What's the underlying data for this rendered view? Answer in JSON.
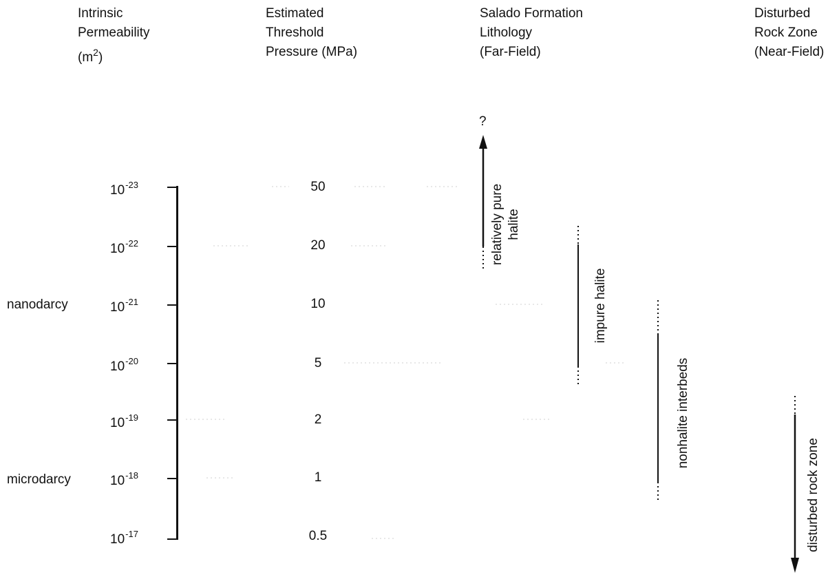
{
  "headers": {
    "permeability": [
      "Intrinsic",
      "Permeability",
      "(m2)"
    ],
    "pressure": [
      "Estimated",
      "Threshold",
      "Pressure (MPa)"
    ],
    "lithology": [
      "Salado Formation",
      "Lithology",
      "(Far-Field)"
    ],
    "drz": [
      "Disturbed",
      "Rock Zone",
      "(Near-Field)"
    ]
  },
  "permeability_levels": [
    {
      "base": "10",
      "exp": "-23",
      "pressure": "50"
    },
    {
      "base": "10",
      "exp": "-22",
      "pressure": "20"
    },
    {
      "base": "10",
      "exp": "-21",
      "pressure": "10"
    },
    {
      "base": "10",
      "exp": "-20",
      "pressure": "5"
    },
    {
      "base": "10",
      "exp": "-19",
      "pressure": "2"
    },
    {
      "base": "10",
      "exp": "-18",
      "pressure": "1"
    },
    {
      "base": "10",
      "exp": "-17",
      "pressure": "0.5"
    }
  ],
  "unit_labels": {
    "nanodarcy": "nanodarcy",
    "microdarcy": "microdarcy"
  },
  "ranges": {
    "question_mark": "?",
    "relatively_pure_halite": [
      "relatively pure",
      "halite"
    ],
    "impure_halite": "impure halite",
    "nonhalite_interbeds": "nonhalite interbeds",
    "disturbed_rock_zone": "disturbed rock zone"
  }
}
